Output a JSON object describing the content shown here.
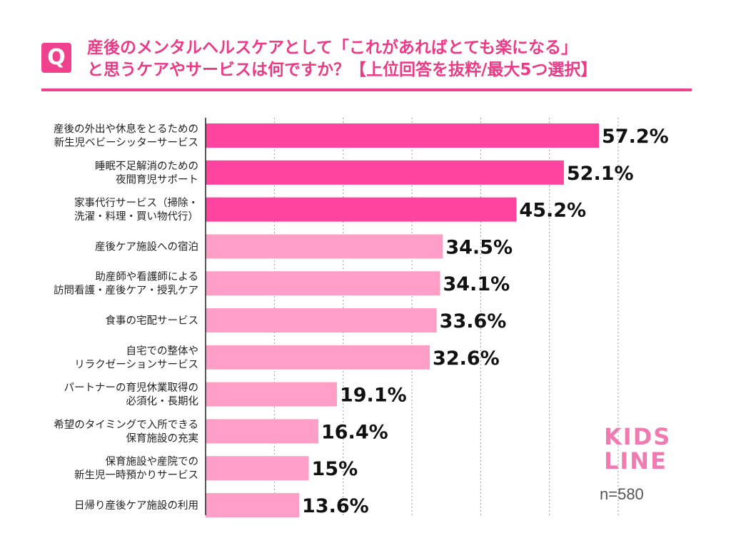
{
  "title": {
    "badge": "Q",
    "line1": "産後のメンタルヘルスケアとして「これがあればとても楽になる」",
    "line2": "と思うケアやサービスは何ですか？【上位回答を抜粋/最大5つ選択】"
  },
  "logo": {
    "line1": "KIDS",
    "line2": "LINE"
  },
  "sample": "n=580",
  "colors": {
    "accent": "#f0418d",
    "bar_top": "#ff44a0",
    "bar_rest": "#ff9fc8"
  },
  "chart_data": {
    "type": "bar",
    "orientation": "horizontal",
    "unit": "%",
    "grid": true,
    "categories": [
      [
        "産後の外出や休息をとるための",
        "新生児ベビーシッターサービス"
      ],
      [
        "睡眠不足解消のための",
        "夜間育児サポート"
      ],
      [
        "家事代行サービス（掃除・",
        "洗濯・料理・買い物代行）"
      ],
      [
        "産後ケア施設への宿泊"
      ],
      [
        "助産師や看護師による",
        "訪問看護・産後ケア・授乳ケア"
      ],
      [
        "食事の宅配サービス"
      ],
      [
        "自宅での整体や",
        "リラクゼーションサービス"
      ],
      [
        "パートナーの育児休業取得の",
        "必須化・長期化"
      ],
      [
        "希望のタイミングで入所できる",
        "保育施設の充実"
      ],
      [
        "保育施設や産院での",
        "新生児一時預かりサービス"
      ],
      [
        "日帰り産後ケア施設の利用"
      ]
    ],
    "values": [
      57.2,
      52.1,
      45.2,
      34.5,
      34.1,
      33.6,
      32.6,
      19.1,
      16.4,
      15,
      13.6
    ],
    "value_labels": [
      "57.2%",
      "52.1%",
      "45.2%",
      "34.5%",
      "34.1%",
      "33.6%",
      "32.6%",
      "19.1%",
      "16.4%",
      "15%",
      "13.6%"
    ],
    "highlighted_top": 3,
    "xlim": [
      0,
      60
    ]
  }
}
